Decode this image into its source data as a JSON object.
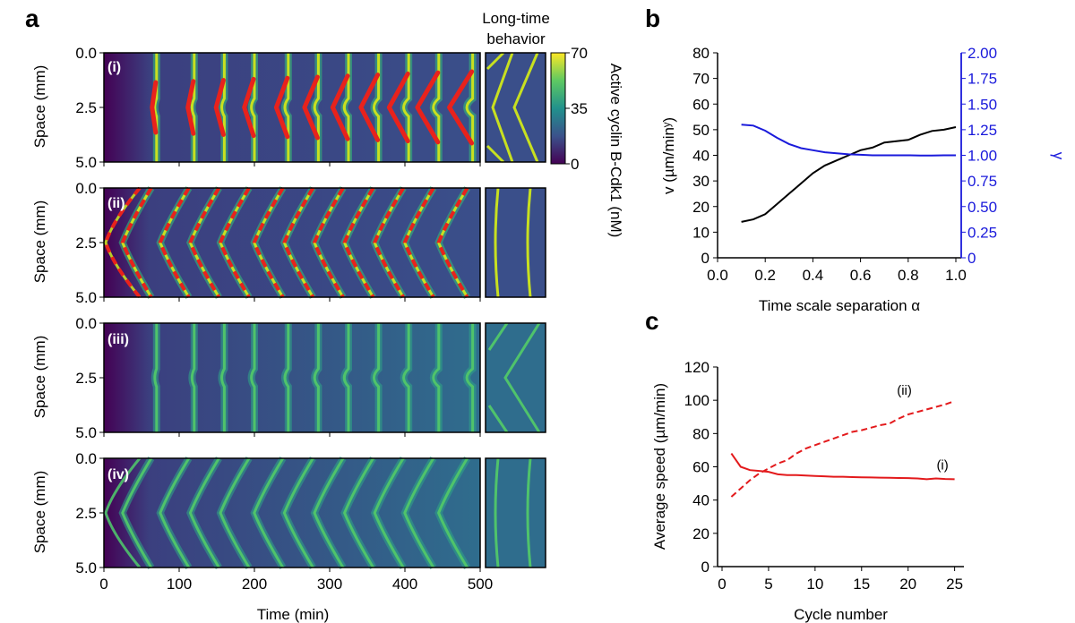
{
  "panel_labels": {
    "a": "a",
    "b": "b",
    "c": "c"
  },
  "panel_a": {
    "long_time_header": [
      "Long-time",
      "behavior"
    ],
    "rows": [
      {
        "label": "(i)",
        "pattern": "point_source",
        "brightness": 1.0,
        "red_overlay": "solid"
      },
      {
        "label": "(ii)",
        "pattern": "chevron",
        "brightness": 1.0,
        "red_overlay": "dashed"
      },
      {
        "label": "(iii)",
        "pattern": "point_source",
        "brightness": 0.55,
        "red_overlay": "none"
      },
      {
        "label": "(iv)",
        "pattern": "chevron",
        "brightness": 0.55,
        "red_overlay": "none"
      }
    ],
    "ylabel": "Space (mm)",
    "yticks": [
      "0.0",
      "2.5",
      "5.0"
    ],
    "xlabel": "Time (min)",
    "xticks": [
      "0",
      "100",
      "200",
      "300",
      "400",
      "500"
    ],
    "colorbar": {
      "label": "Active cyclin B-Cdk1 (nM)",
      "ticks": [
        "70",
        "35",
        "0"
      ],
      "range": [
        0,
        70
      ]
    },
    "wave_times_min": [
      70,
      120,
      160,
      200,
      245,
      285,
      325,
      365,
      405,
      445,
      490
    ]
  },
  "chart_data": [
    {
      "type": "line",
      "panel": "b",
      "xlabel": "Time scale separation α",
      "ylabel_left": "v (µm/minʸ)",
      "ylabel_right": "γ",
      "xlim": [
        0.0,
        1.0
      ],
      "ylim_left": [
        0,
        80
      ],
      "ylim_right": [
        0,
        2.0
      ],
      "xticks": [
        "0.0",
        "0.2",
        "0.4",
        "0.6",
        "0.8",
        "1.0"
      ],
      "yticks_left": [
        "0",
        "10",
        "20",
        "30",
        "40",
        "50",
        "60",
        "70",
        "80"
      ],
      "yticks_right": [
        "0",
        "0.25",
        "0.50",
        "0.75",
        "1.00",
        "1.25",
        "1.50",
        "1.75",
        "2.00"
      ],
      "series": [
        {
          "axis": "left",
          "color": "#000000",
          "x": [
            0.1,
            0.15,
            0.2,
            0.25,
            0.3,
            0.35,
            0.4,
            0.45,
            0.5,
            0.55,
            0.6,
            0.65,
            0.7,
            0.75,
            0.8,
            0.85,
            0.9,
            0.95,
            1.0
          ],
          "y": [
            14,
            15,
            17,
            21,
            25,
            29,
            33,
            36,
            38,
            40,
            42,
            43,
            45,
            45.5,
            46,
            48,
            49.5,
            50,
            51
          ]
        },
        {
          "axis": "right",
          "color": "#1a1adb",
          "x": [
            0.1,
            0.15,
            0.2,
            0.25,
            0.3,
            0.35,
            0.4,
            0.45,
            0.5,
            0.55,
            0.6,
            0.65,
            0.7,
            0.75,
            0.8,
            0.85,
            0.9,
            0.95,
            1.0
          ],
          "y": [
            1.3,
            1.29,
            1.24,
            1.17,
            1.11,
            1.07,
            1.05,
            1.03,
            1.02,
            1.01,
            1.005,
            1.0,
            1.0,
            1.0,
            1.0,
            0.998,
            0.998,
            1.0,
            1.0
          ]
        }
      ]
    },
    {
      "type": "line",
      "panel": "c",
      "xlabel": "Cycle number",
      "ylabel": "Average speed (µm/min)",
      "xlim": [
        0,
        26
      ],
      "ylim": [
        0,
        120
      ],
      "xticks": [
        "0",
        "5",
        "10",
        "15",
        "20",
        "25"
      ],
      "yticks": [
        "0",
        "20",
        "40",
        "60",
        "80",
        "100",
        "120"
      ],
      "annotations": [
        "(ii)",
        "(i)"
      ],
      "series": [
        {
          "name": "(i)",
          "style": "solid",
          "color": "#e31a1c",
          "x": [
            1,
            2,
            3,
            4,
            5,
            6,
            7,
            8,
            9,
            10,
            11,
            12,
            13,
            14,
            15,
            16,
            17,
            18,
            19,
            20,
            21,
            22,
            23,
            24,
            25
          ],
          "y": [
            68,
            60,
            58,
            57.5,
            57,
            55.5,
            55,
            55,
            54.8,
            54.5,
            54.3,
            54,
            54,
            53.8,
            53.7,
            53.6,
            53.5,
            53.4,
            53.3,
            53.2,
            53,
            52.5,
            53,
            52.7,
            52.5
          ]
        },
        {
          "name": "(ii)",
          "style": "dashed",
          "color": "#e31a1c",
          "x": [
            1,
            2,
            3,
            4,
            5,
            6,
            7,
            8,
            9,
            10,
            11,
            12,
            13,
            14,
            15,
            16,
            17,
            18,
            19,
            20,
            21,
            22,
            23,
            24,
            25
          ],
          "y": [
            42,
            47,
            52,
            56,
            59,
            62,
            64,
            68,
            71,
            73,
            75,
            77,
            79,
            81,
            82,
            83.5,
            85,
            86,
            89,
            91.5,
            93,
            94.5,
            96,
            97.5,
            99.5
          ]
        }
      ]
    }
  ]
}
